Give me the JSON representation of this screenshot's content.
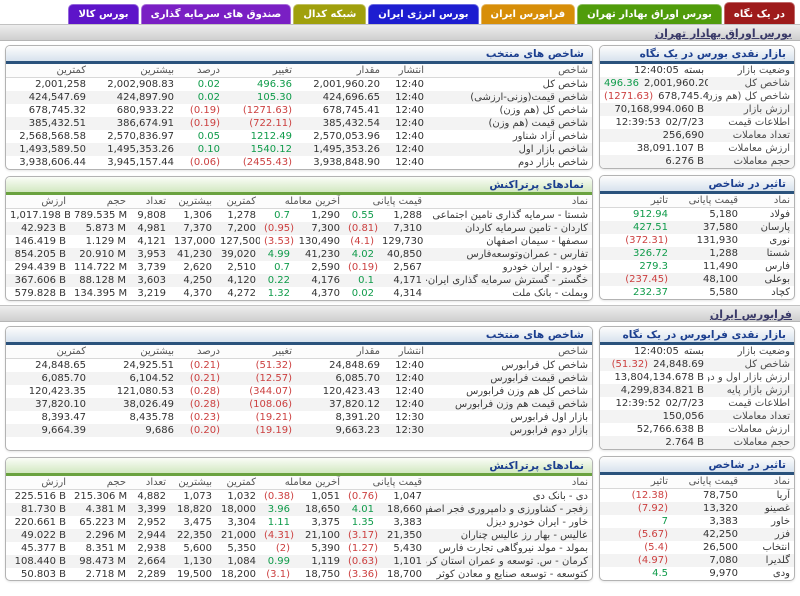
{
  "tabs": [
    {
      "label": "در یک نگاه",
      "color": "#9e1b1b",
      "active": true
    },
    {
      "label": "بورس اوراق بهادار تهران",
      "color": "#509c0b",
      "active": false
    },
    {
      "label": "فرابورس ایران",
      "color": "#d78e08",
      "active": false
    },
    {
      "label": "بورس انرژی ایران",
      "color": "#1d1dd0",
      "active": false
    },
    {
      "label": "شبکه کدال",
      "color": "#a0a00c",
      "active": false
    },
    {
      "label": "صندوق های سرمایه گذاری",
      "color": "#7a1fc4",
      "active": false
    },
    {
      "label": "بورس کالا",
      "color": "#5d14c9",
      "active": false
    }
  ],
  "sections": [
    {
      "bar_title": "بورس اوراق بهادار تهران",
      "glance": {
        "title": "بازار نقدی بورس در یک نگاه",
        "rows": [
          {
            "label": "وضعیت بازار",
            "value": "بسته",
            "pre": "12:40:05",
            "pre_dir": "plain"
          },
          {
            "label": "شاخص کل",
            "value": "2,001,960.20",
            "pre": "496.36",
            "pre_dir": "up"
          },
          {
            "label": "شاخص کل (هم وزن)",
            "value": "678,745.41",
            "pre": "(1271.63)",
            "pre_dir": "down"
          },
          {
            "label": "ارزش بازار",
            "value": "70,168,994.060 B"
          },
          {
            "label": "اطلاعات قیمت",
            "value": "02/7/23",
            "pre": "12:39:53",
            "pre_dir": "plain"
          },
          {
            "label": "تعداد معاملات",
            "value": "256,690"
          },
          {
            "label": "ارزش معاملات",
            "value": "38,091.107 B"
          },
          {
            "label": "حجم معاملات",
            "value": "6.276 B"
          }
        ]
      },
      "impact": {
        "title": "تاثیر در شاخص",
        "headers": [
          "نماد",
          "قیمت پایانی",
          "تاثیر"
        ],
        "rows": [
          {
            "sym": "فولاد",
            "price": "5,180",
            "impact": "912.94",
            "dir": "up"
          },
          {
            "sym": "پارسان",
            "price": "37,580",
            "impact": "427.51",
            "dir": "up"
          },
          {
            "sym": "نوری",
            "price": "131,930",
            "impact": "(372.31)",
            "dir": "down"
          },
          {
            "sym": "شستا",
            "price": "1,288",
            "impact": "326.72",
            "dir": "up"
          },
          {
            "sym": "فارس",
            "price": "11,490",
            "impact": "279.3",
            "dir": "up"
          },
          {
            "sym": "بوعلی",
            "price": "48,100",
            "impact": "(237.45)",
            "dir": "down"
          },
          {
            "sym": "کچاد",
            "price": "5,580",
            "impact": "232.37",
            "dir": "up"
          }
        ]
      },
      "indices": {
        "title": "شاخص های منتخب",
        "headers": [
          "شاخص",
          "انتشار",
          "مقدار",
          "تغییر",
          "درصد",
          "بیشترین",
          "کمترین"
        ],
        "rows": [
          {
            "name": "شاخص کل",
            "time": "12:40",
            "value": "2,001,960.20",
            "change": "496.36",
            "pct": "0.02",
            "dir": "up",
            "high": "2,002,908.83",
            "low": "2,001,258"
          },
          {
            "name": "شاخص قیمت(وزنی-ارزشی)",
            "time": "12:40",
            "value": "424,696.65",
            "change": "105.30",
            "pct": "0.02",
            "dir": "up",
            "high": "424,897.90",
            "low": "424,547.69"
          },
          {
            "name": "شاخص کل (هم وزن)",
            "time": "12:40",
            "value": "678,745.41",
            "change": "(1271.63)",
            "pct": "(0.19)",
            "dir": "down",
            "high": "680,933.22",
            "low": "678,745.32"
          },
          {
            "name": "شاخص قیمت (هم وزن)",
            "time": "12:40",
            "value": "385,432.54",
            "change": "(722.11)",
            "pct": "(0.19)",
            "dir": "down",
            "high": "386,674.91",
            "low": "385,432.51"
          },
          {
            "name": "شاخص آزاد شناور",
            "time": "12:40",
            "value": "2,570,053.96",
            "change": "1212.49",
            "pct": "0.05",
            "dir": "up",
            "high": "2,570,836.97",
            "low": "2,568,568.58"
          },
          {
            "name": "شاخص بازار اول",
            "time": "12:40",
            "value": "1,495,353.26",
            "change": "1540.12",
            "pct": "0.10",
            "dir": "up",
            "high": "1,495,353.26",
            "low": "1,493,589.50"
          },
          {
            "name": "شاخص بازار دوم",
            "time": "12:40",
            "value": "3,938,848.90",
            "change": "(2455.43)",
            "pct": "(0.06)",
            "dir": "down",
            "high": "3,945,157.44",
            "low": "3,938,606.44"
          }
        ]
      },
      "actives": {
        "title": "نمادهای پرتراکنش",
        "headers": [
          "نماد",
          "قیمت پایانی",
          "آخرین معامله",
          "کمترین",
          "بیشترین",
          "تعداد",
          "حجم",
          "ارزش"
        ],
        "rows": [
          {
            "name": "شستا - سرمایه گذاری تامین اجتماعی",
            "close": "1,288",
            "close_pct": "0.55",
            "close_dir": "up",
            "last": "1,290",
            "last_pct": "0.7",
            "last_dir": "up",
            "low": "1,278",
            "high": "1,306",
            "count": "9,808",
            "vol": "789.535 M",
            "val": "1,017.198 B"
          },
          {
            "name": "کاردان - تامین سرمایه کاردان",
            "close": "7,310",
            "close_pct": "(0.81)",
            "close_dir": "down",
            "last": "7,300",
            "last_pct": "(0.95)",
            "last_dir": "down",
            "low": "7,200",
            "high": "7,370",
            "count": "4,981",
            "vol": "5.873 M",
            "val": "42.923 B"
          },
          {
            "name": "سصفها - سیمان اصفهان",
            "close": "129,730",
            "close_pct": "(4.1)",
            "close_dir": "down",
            "last": "130,490",
            "last_pct": "(3.53)",
            "last_dir": "down",
            "low": "127,500",
            "high": "137,000",
            "count": "4,121",
            "vol": "1.129 M",
            "val": "146.419 B"
          },
          {
            "name": "تفارس - عمران‌وتوسعه‌فارس",
            "close": "40,850",
            "close_pct": "4.02",
            "close_dir": "up",
            "last": "41,230",
            "last_pct": "4.99",
            "last_dir": "up",
            "low": "39,020",
            "high": "41,230",
            "count": "3,953",
            "vol": "20.910 M",
            "val": "854.205 B"
          },
          {
            "name": "خودرو - ایران خودرو",
            "close": "2,567",
            "close_pct": "(0.19)",
            "close_dir": "down",
            "last": "2,590",
            "last_pct": "0.7",
            "last_dir": "up",
            "low": "2,510",
            "high": "2,620",
            "count": "3,739",
            "vol": "114.722 M",
            "val": "294.439 B"
          },
          {
            "name": "خگستر - گسترش سرمایه گذاری ایران‌خودرو",
            "close": "4,171",
            "close_pct": "0.1",
            "close_dir": "up",
            "last": "4,176",
            "last_pct": "0.22",
            "last_dir": "up",
            "low": "4,120",
            "high": "4,250",
            "count": "3,603",
            "vol": "88.128 M",
            "val": "367.606 B"
          },
          {
            "name": "وبملت - بانک ملت",
            "close": "4,314",
            "close_pct": "0.02",
            "close_dir": "up",
            "last": "4,370",
            "last_pct": "1.32",
            "last_dir": "up",
            "low": "4,272",
            "high": "4,370",
            "count": "3,219",
            "vol": "134.395 M",
            "val": "579.828 B"
          }
        ]
      }
    },
    {
      "bar_title": "فرابورس ایران",
      "glance": {
        "title": "بازار نقدی فرابورس در یک نگاه",
        "rows": [
          {
            "label": "وضعیت بازار",
            "value": "بسته",
            "pre": "12:40:05",
            "pre_dir": "plain"
          },
          {
            "label": "شاخص کل",
            "value": "24,848.69",
            "pre": "(51.32)",
            "pre_dir": "down"
          },
          {
            "label": "ارزش بازار اول و دوم",
            "value": "13,804,134.678 B"
          },
          {
            "label": "ارزش بازار پایه",
            "value": "4,299,834.821 B"
          },
          {
            "label": "اطلاعات قیمت",
            "value": "02/7/23",
            "pre": "12:39:52",
            "pre_dir": "plain"
          },
          {
            "label": "تعداد معاملات",
            "value": "150,056"
          },
          {
            "label": "ارزش معاملات",
            "value": "52,766.638 B"
          },
          {
            "label": "حجم معاملات",
            "value": "2.764 B"
          }
        ]
      },
      "impact": {
        "title": "تاثیر در شاخص",
        "headers": [
          "نماد",
          "قیمت پایانی",
          "تاثیر"
        ],
        "rows": [
          {
            "sym": "آریا",
            "price": "78,750",
            "impact": "(12.38)",
            "dir": "down"
          },
          {
            "sym": "غصینو",
            "price": "13,320",
            "impact": "(7.92)",
            "dir": "down"
          },
          {
            "sym": "خاور",
            "price": "3,383",
            "impact": "7",
            "dir": "up"
          },
          {
            "sym": "فزر",
            "price": "42,250",
            "impact": "(5.67)",
            "dir": "down"
          },
          {
            "sym": "انتخاب",
            "price": "26,500",
            "impact": "(5.4)",
            "dir": "down"
          },
          {
            "sym": "گلدیرا",
            "price": "7,080",
            "impact": "(4.97)",
            "dir": "down"
          },
          {
            "sym": "ودی",
            "price": "9,970",
            "impact": "4.5",
            "dir": "up"
          }
        ]
      },
      "indices": {
        "title": "شاخص های منتخب",
        "headers": [
          "شاخص",
          "انتشار",
          "مقدار",
          "تغییر",
          "درصد",
          "بیشترین",
          "کمترین"
        ],
        "rows": [
          {
            "name": "شاخص کل فرابورس",
            "time": "12:40",
            "value": "24,848.69",
            "change": "(51.32)",
            "pct": "(0.21)",
            "dir": "down",
            "high": "24,925.51",
            "low": "24,848.65"
          },
          {
            "name": "شاخص قیمت فرابورس",
            "time": "12:40",
            "value": "6,085.70",
            "change": "(12.57)",
            "pct": "(0.21)",
            "dir": "down",
            "high": "6,104.52",
            "low": "6,085.70"
          },
          {
            "name": "شاخص کل هم وزن فرابورس",
            "time": "12:40",
            "value": "120,423.43",
            "change": "(344.07)",
            "pct": "(0.28)",
            "dir": "down",
            "high": "121,080.53",
            "low": "120,423.35"
          },
          {
            "name": "شاخص قیمت هم وزن فرابورس",
            "time": "12:40",
            "value": "37,820.12",
            "change": "(108.06)",
            "pct": "(0.28)",
            "dir": "down",
            "high": "38,026.49",
            "low": "37,820.10"
          },
          {
            "name": "بازار اول فرابورس",
            "time": "12:30",
            "value": "8,391.20",
            "change": "(19.21)",
            "pct": "(0.23)",
            "dir": "down",
            "high": "8,435.78",
            "low": "8,393.47"
          },
          {
            "name": "بازار دوم فرابورس",
            "time": "12:30",
            "value": "9,663.23",
            "change": "(19.19)",
            "pct": "(0.20)",
            "dir": "down",
            "high": "9,686",
            "low": "9,664.39"
          }
        ]
      },
      "actives": {
        "title": "نمادهای پرتراکنش",
        "headers": [
          "نماد",
          "قیمت پایانی",
          "آخرین معامله",
          "کمترین",
          "بیشترین",
          "تعداد",
          "حجم",
          "ارزش"
        ],
        "rows": [
          {
            "name": "دی - بانک دی",
            "close": "1,047",
            "close_pct": "(0.76)",
            "close_dir": "down",
            "last": "1,051",
            "last_pct": "(0.38)",
            "last_dir": "down",
            "low": "1,032",
            "high": "1,073",
            "count": "4,882",
            "vol": "215.306 M",
            "val": "225.516 B"
          },
          {
            "name": "زفجر - کشاورزی و دامپروری فجر اصفهان",
            "close": "18,660",
            "close_pct": "4.01",
            "close_dir": "up",
            "last": "18,650",
            "last_pct": "3.96",
            "last_dir": "up",
            "low": "18,000",
            "high": "18,820",
            "count": "3,399",
            "vol": "4.381 M",
            "val": "81.730 B"
          },
          {
            "name": "خاور - ایران خودرو دیزل",
            "close": "3,383",
            "close_pct": "1.35",
            "close_dir": "up",
            "last": "3,375",
            "last_pct": "1.11",
            "last_dir": "up",
            "low": "3,304",
            "high": "3,475",
            "count": "2,952",
            "vol": "65.223 M",
            "val": "220.661 B"
          },
          {
            "name": "عالیس - بهار رز عالیس چناران",
            "close": "21,350",
            "close_pct": "(3.17)",
            "close_dir": "down",
            "last": "21,100",
            "last_pct": "(4.31)",
            "last_dir": "down",
            "low": "21,000",
            "high": "22,350",
            "count": "2,944",
            "vol": "2.296 M",
            "val": "49.022 B"
          },
          {
            "name": "بمولد - مولد نیروگاهی تجارت فارس",
            "close": "5,430",
            "close_pct": "(1.27)",
            "close_dir": "down",
            "last": "5,390",
            "last_pct": "(2)",
            "last_dir": "down",
            "low": "5,350",
            "high": "5,600",
            "count": "2,938",
            "vol": "8.351 M",
            "val": "45.377 B"
          },
          {
            "name": "کرمان - س. توسعه و عمران استان کرمان",
            "close": "1,101",
            "close_pct": "(0.63)",
            "close_dir": "down",
            "last": "1,119",
            "last_pct": "0.99",
            "last_dir": "up",
            "low": "1,084",
            "high": "1,130",
            "count": "2,664",
            "vol": "98.473 M",
            "val": "108.440 B"
          },
          {
            "name": "کتوسعه - توسعه صنایع و معادن کوثر",
            "close": "18,700",
            "close_pct": "(3.36)",
            "close_dir": "down",
            "last": "18,750",
            "last_pct": "(3.1)",
            "last_dir": "down",
            "low": "18,200",
            "high": "19,500",
            "count": "2,289",
            "vol": "2.718 M",
            "val": "50.803 B"
          }
        ]
      }
    }
  ]
}
